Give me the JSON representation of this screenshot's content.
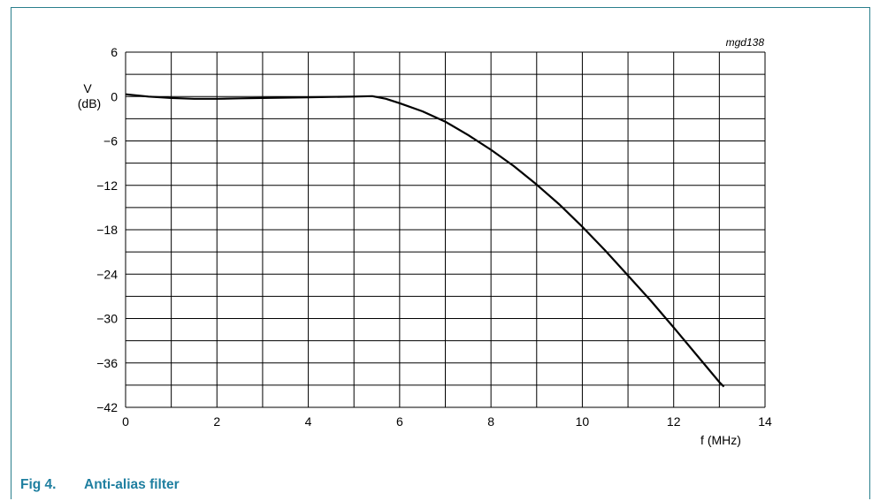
{
  "figure": {
    "code": "mgd138",
    "number": "Fig 4.",
    "title": "Anti-alias filter"
  },
  "chart_data": {
    "type": "line",
    "title": "",
    "xlabel": "f (MHz)",
    "ylabel_line1": "V",
    "ylabel_line2": "(dB)",
    "xlim": [
      0,
      14
    ],
    "ylim": [
      -42,
      6
    ],
    "x_ticks": [
      0,
      2,
      4,
      6,
      8,
      10,
      12,
      14
    ],
    "y_ticks": [
      6,
      0,
      -6,
      -12,
      -18,
      -24,
      -30,
      -36,
      -42
    ],
    "x_tick_labels": [
      "0",
      "2",
      "4",
      "6",
      "8",
      "10",
      "12",
      "14"
    ],
    "y_tick_labels": [
      "6",
      "0",
      "−6",
      "−12",
      "−18",
      "−24",
      "−30",
      "−36",
      "−42"
    ],
    "grid": true,
    "series": [
      {
        "color": "#000000",
        "x": [
          0,
          0.5,
          1,
          1.5,
          2,
          2.5,
          3,
          3.5,
          4,
          4.5,
          5,
          5.4,
          5.7,
          6,
          6.5,
          7,
          7.5,
          8,
          8.5,
          9,
          9.5,
          10,
          10.5,
          11,
          11.5,
          12,
          12.5,
          13,
          13.1
        ],
        "y": [
          0.3,
          0.0,
          -0.2,
          -0.3,
          -0.3,
          -0.25,
          -0.2,
          -0.15,
          -0.1,
          -0.05,
          0.0,
          0.05,
          -0.3,
          -0.9,
          -2.0,
          -3.4,
          -5.2,
          -7.2,
          -9.4,
          -11.9,
          -14.6,
          -17.6,
          -20.8,
          -24.2,
          -27.6,
          -31.2,
          -34.9,
          -38.6,
          -39.2
        ]
      }
    ]
  }
}
